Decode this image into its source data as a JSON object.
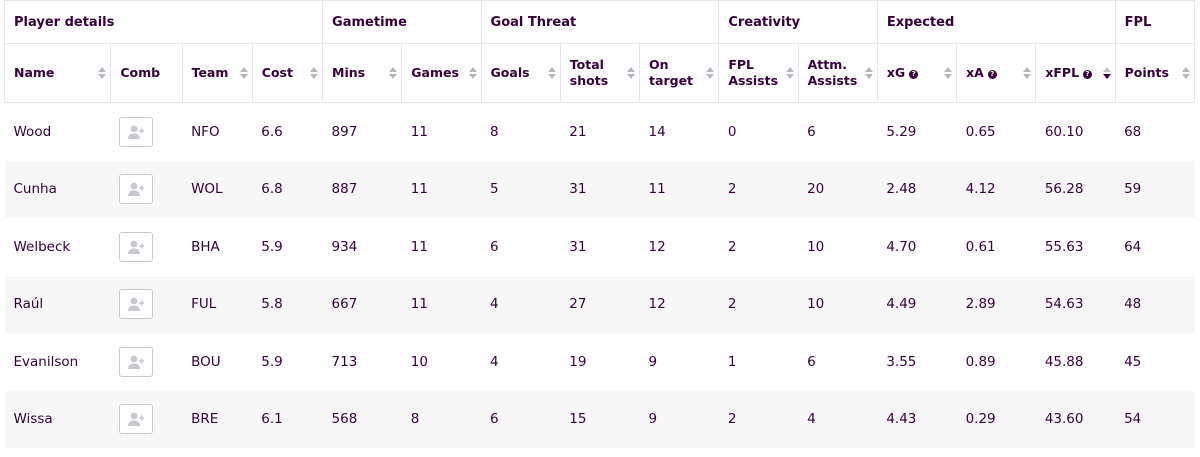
{
  "groups": {
    "player_details": "Player details",
    "gametime": "Gametime",
    "goal_threat": "Goal Threat",
    "creativity": "Creativity",
    "expected": "Expected",
    "fpl": "FPL"
  },
  "columns": {
    "name": "Name",
    "comb": "Comb",
    "team": "Team",
    "cost": "Cost",
    "mins": "Mins",
    "games": "Games",
    "goals": "Goals",
    "total_shots_1": "Total",
    "total_shots_2": "shots",
    "on_target_1": "On",
    "on_target_2": "target",
    "fpl_assists_1": "FPL",
    "fpl_assists_2": "Assists",
    "attm_assists_1": "Attm.",
    "attm_assists_2": "Assists",
    "xg": "xG",
    "xa": "xA",
    "xfpl": "xFPL",
    "points": "Points"
  },
  "help_icon": "?",
  "icons": {
    "sort": "sort-arrows-icon",
    "help": "question-circle-icon",
    "add_to_comb": "add-user-icon"
  },
  "rows": [
    {
      "name": "Wood",
      "team": "NFO",
      "cost": "6.6",
      "mins": "897",
      "games": "11",
      "goals": "8",
      "shots": "21",
      "on_target": "14",
      "fpl_assists": "0",
      "attm_assists": "6",
      "xg": "5.29",
      "xa": "0.65",
      "xfpl": "60.10",
      "points": "68"
    },
    {
      "name": "Cunha",
      "team": "WOL",
      "cost": "6.8",
      "mins": "887",
      "games": "11",
      "goals": "5",
      "shots": "31",
      "on_target": "11",
      "fpl_assists": "2",
      "attm_assists": "20",
      "xg": "2.48",
      "xa": "4.12",
      "xfpl": "56.28",
      "points": "59"
    },
    {
      "name": "Welbeck",
      "team": "BHA",
      "cost": "5.9",
      "mins": "934",
      "games": "11",
      "goals": "6",
      "shots": "31",
      "on_target": "12",
      "fpl_assists": "2",
      "attm_assists": "10",
      "xg": "4.70",
      "xa": "0.61",
      "xfpl": "55.63",
      "points": "64"
    },
    {
      "name": "Raúl",
      "team": "FUL",
      "cost": "5.8",
      "mins": "667",
      "games": "11",
      "goals": "4",
      "shots": "27",
      "on_target": "12",
      "fpl_assists": "2",
      "attm_assists": "10",
      "xg": "4.49",
      "xa": "2.89",
      "xfpl": "54.63",
      "points": "48"
    },
    {
      "name": "Evanilson",
      "team": "BOU",
      "cost": "5.9",
      "mins": "713",
      "games": "10",
      "goals": "4",
      "shots": "19",
      "on_target": "9",
      "fpl_assists": "1",
      "attm_assists": "6",
      "xg": "3.55",
      "xa": "0.89",
      "xfpl": "45.88",
      "points": "45"
    },
    {
      "name": "Wissa",
      "team": "BRE",
      "cost": "6.1",
      "mins": "568",
      "games": "8",
      "goals": "6",
      "shots": "15",
      "on_target": "9",
      "fpl_assists": "2",
      "attm_assists": "4",
      "xg": "4.43",
      "xa": "0.29",
      "xfpl": "43.60",
      "points": "54"
    }
  ]
}
